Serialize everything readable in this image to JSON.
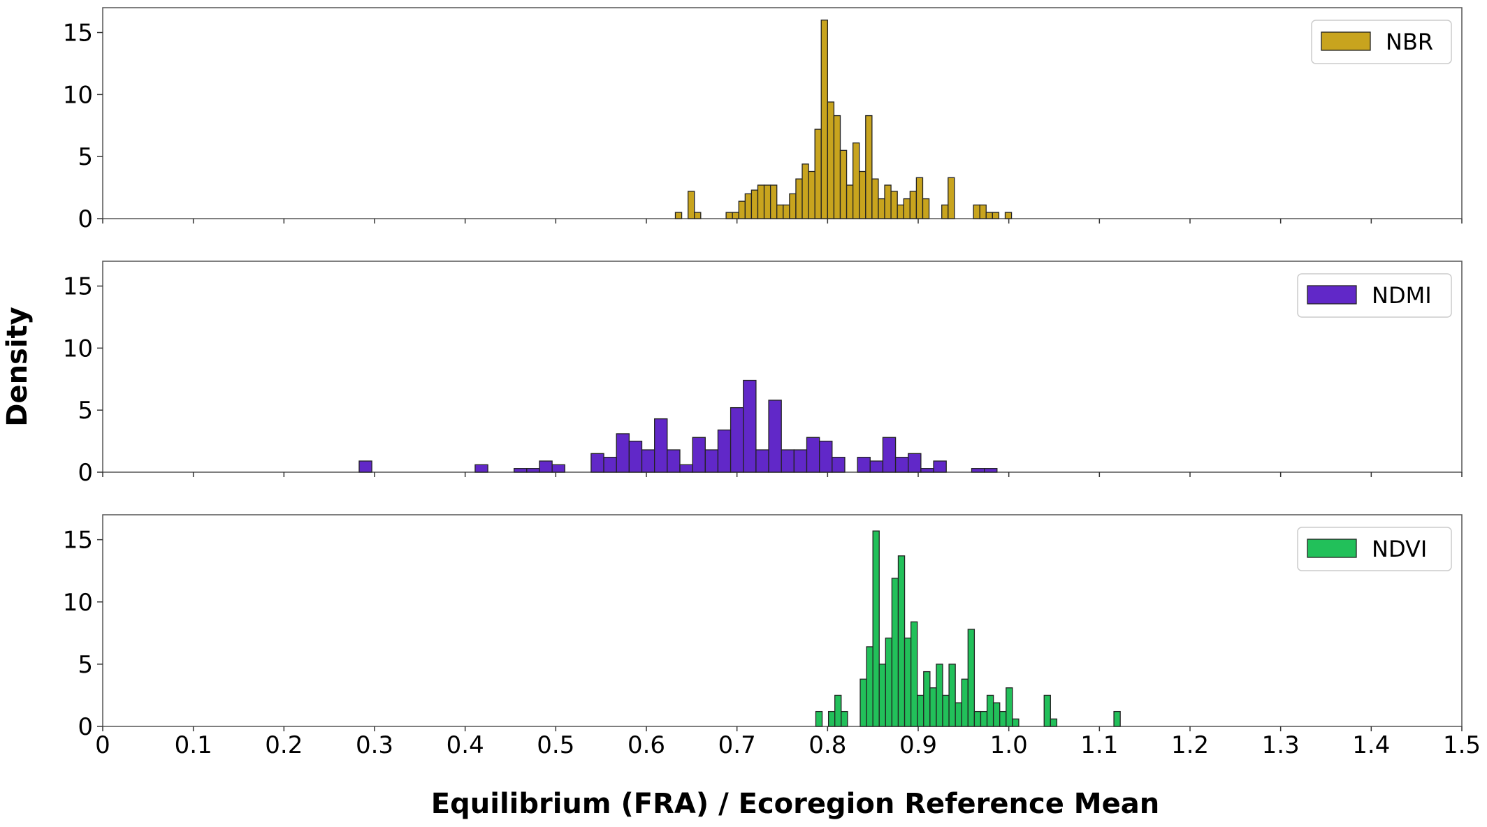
{
  "chart_data": {
    "type": "bar",
    "xlabel": "Equilibrium (FRA) / Ecoregion Reference Mean",
    "ylabel": "Density",
    "xlim": [
      0,
      1.5
    ],
    "xticks": [
      "0",
      "0.1",
      "0.2",
      "0.3",
      "0.4",
      "0.5",
      "0.6",
      "0.7",
      "0.8",
      "0.9",
      "1.0",
      "1.1",
      "1.2",
      "1.3",
      "1.4",
      "1.5"
    ],
    "ylim": [
      0,
      17
    ],
    "yticks": [
      "0",
      "5",
      "10",
      "15"
    ],
    "grid": false,
    "legend_placement": "top-right",
    "panels": [
      {
        "name": "NBR",
        "color": "#c8a41e",
        "bin_width": 0.007,
        "bins": [
          [
            0.632,
            0.5
          ],
          [
            0.646,
            2.2
          ],
          [
            0.653,
            0.5
          ],
          [
            0.688,
            0.5
          ],
          [
            0.695,
            0.5
          ],
          [
            0.702,
            1.4
          ],
          [
            0.709,
            2.0
          ],
          [
            0.716,
            2.3
          ],
          [
            0.723,
            2.7
          ],
          [
            0.73,
            2.7
          ],
          [
            0.737,
            2.7
          ],
          [
            0.744,
            1.1
          ],
          [
            0.751,
            1.1
          ],
          [
            0.758,
            2.0
          ],
          [
            0.765,
            3.2
          ],
          [
            0.772,
            4.4
          ],
          [
            0.779,
            3.8
          ],
          [
            0.786,
            7.2
          ],
          [
            0.793,
            16.0
          ],
          [
            0.8,
            9.4
          ],
          [
            0.807,
            8.3
          ],
          [
            0.814,
            5.5
          ],
          [
            0.821,
            2.7
          ],
          [
            0.828,
            6.1
          ],
          [
            0.835,
            3.8
          ],
          [
            0.842,
            8.3
          ],
          [
            0.849,
            3.2
          ],
          [
            0.856,
            1.6
          ],
          [
            0.863,
            2.7
          ],
          [
            0.87,
            2.2
          ],
          [
            0.877,
            1.1
          ],
          [
            0.884,
            1.6
          ],
          [
            0.891,
            2.2
          ],
          [
            0.898,
            3.3
          ],
          [
            0.905,
            1.6
          ],
          [
            0.926,
            1.1
          ],
          [
            0.933,
            3.3
          ],
          [
            0.961,
            1.1
          ],
          [
            0.968,
            1.1
          ],
          [
            0.975,
            0.5
          ],
          [
            0.982,
            0.5
          ],
          [
            0.996,
            0.5
          ]
        ]
      },
      {
        "name": "NDMI",
        "color": "#6128c8",
        "bin_width": 0.014,
        "bins": [
          [
            0.283,
            0.9
          ],
          [
            0.411,
            0.6
          ],
          [
            0.454,
            0.3
          ],
          [
            0.468,
            0.3
          ],
          [
            0.482,
            0.9
          ],
          [
            0.496,
            0.6
          ],
          [
            0.539,
            1.5
          ],
          [
            0.553,
            1.2
          ],
          [
            0.567,
            3.1
          ],
          [
            0.581,
            2.5
          ],
          [
            0.595,
            1.8
          ],
          [
            0.609,
            4.3
          ],
          [
            0.623,
            1.8
          ],
          [
            0.637,
            0.6
          ],
          [
            0.651,
            2.8
          ],
          [
            0.665,
            1.8
          ],
          [
            0.679,
            3.4
          ],
          [
            0.693,
            5.2
          ],
          [
            0.707,
            7.4
          ],
          [
            0.721,
            1.8
          ],
          [
            0.735,
            5.8
          ],
          [
            0.749,
            1.8
          ],
          [
            0.763,
            1.8
          ],
          [
            0.777,
            2.8
          ],
          [
            0.791,
            2.5
          ],
          [
            0.805,
            1.2
          ],
          [
            0.833,
            1.2
          ],
          [
            0.847,
            0.9
          ],
          [
            0.861,
            2.8
          ],
          [
            0.875,
            1.2
          ],
          [
            0.889,
            1.5
          ],
          [
            0.903,
            0.3
          ],
          [
            0.917,
            0.9
          ],
          [
            0.959,
            0.3
          ],
          [
            0.973,
            0.3
          ]
        ]
      },
      {
        "name": "NDVI",
        "color": "#22c05a",
        "bin_width": 0.007,
        "bins": [
          [
            0.787,
            1.2
          ],
          [
            0.801,
            1.2
          ],
          [
            0.808,
            2.5
          ],
          [
            0.815,
            1.2
          ],
          [
            0.836,
            3.8
          ],
          [
            0.843,
            6.4
          ],
          [
            0.85,
            15.7
          ],
          [
            0.857,
            5.0
          ],
          [
            0.864,
            7.1
          ],
          [
            0.871,
            11.9
          ],
          [
            0.878,
            13.7
          ],
          [
            0.885,
            7.1
          ],
          [
            0.892,
            8.4
          ],
          [
            0.899,
            2.5
          ],
          [
            0.906,
            4.4
          ],
          [
            0.913,
            3.1
          ],
          [
            0.92,
            5.0
          ],
          [
            0.927,
            2.5
          ],
          [
            0.934,
            5.0
          ],
          [
            0.941,
            1.9
          ],
          [
            0.948,
            3.8
          ],
          [
            0.955,
            7.8
          ],
          [
            0.962,
            1.2
          ],
          [
            0.969,
            1.2
          ],
          [
            0.976,
            2.5
          ],
          [
            0.983,
            1.9
          ],
          [
            0.99,
            1.2
          ],
          [
            0.997,
            3.1
          ],
          [
            1.004,
            0.6
          ],
          [
            1.039,
            2.5
          ],
          [
            1.046,
            0.6
          ],
          [
            1.116,
            1.2
          ]
        ]
      }
    ]
  }
}
